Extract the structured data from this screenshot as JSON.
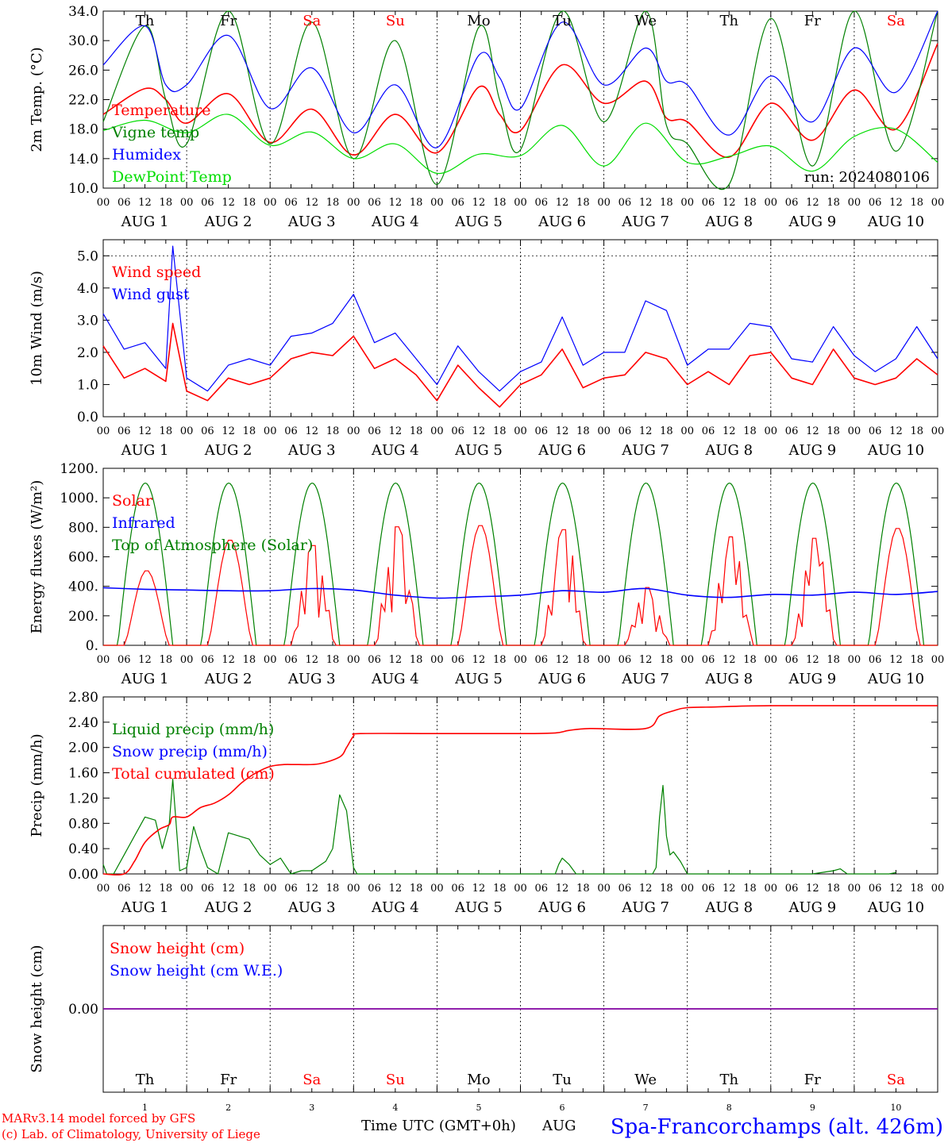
{
  "days": [
    {
      "name": "Th",
      "weekend": false
    },
    {
      "name": "Fr",
      "weekend": false
    },
    {
      "name": "Sa",
      "weekend": true
    },
    {
      "name": "Su",
      "weekend": true
    },
    {
      "name": "Mo",
      "weekend": false
    },
    {
      "name": "Tu",
      "weekend": false
    },
    {
      "name": "We",
      "weekend": false
    },
    {
      "name": "Th",
      "weekend": false
    },
    {
      "name": "Fr",
      "weekend": false
    },
    {
      "name": "Sa",
      "weekend": true
    }
  ],
  "date_labels": [
    "AUG  1",
    "AUG  2",
    "AUG  3",
    "AUG  4",
    "AUG  5",
    "AUG  6",
    "AUG  7",
    "AUG  8",
    "AUG  9",
    "AUG 10"
  ],
  "hour_ticks": [
    "00",
    "06",
    "12",
    "18"
  ],
  "hour_end": "00",
  "day_numbers": [
    "1",
    "2",
    "3",
    "4",
    "5",
    "6",
    "7",
    "8",
    "9",
    "10"
  ],
  "colors": {
    "red": "#ff0000",
    "green": "#008000",
    "blue": "#0000ff",
    "lightgreen": "#00dd00",
    "purple": "#8000a0",
    "weekend": "#ff0000"
  },
  "footer": {
    "model": "MARv3.14 model forced by GFS",
    "copyright": "(c) Lab. of Climatology, University of Liege",
    "xlabel": "Time UTC (GMT+0h)",
    "month": "AUG",
    "location": "Spa-Francorchamps (alt. 426m)"
  },
  "chart_data": [
    {
      "id": "temp",
      "type": "line",
      "ylabel": "2m Temp. (°C)",
      "ylim": [
        10,
        34
      ],
      "yticks": [
        "10.0",
        "14.0",
        "18.0",
        "22.0",
        "26.0",
        "30.0",
        "34.0"
      ],
      "ytick_values": [
        10,
        14,
        18,
        22,
        26,
        30,
        34
      ],
      "annotation": "run: 2024080106",
      "show_days": true,
      "series": [
        {
          "name": "Temperature",
          "color": "red",
          "x": [
            0,
            12,
            18,
            24,
            36,
            48,
            60,
            72,
            84,
            96,
            108,
            114,
            120,
            132,
            144,
            156,
            162,
            168,
            180,
            192,
            204,
            216,
            228,
            240
          ],
          "y": [
            20,
            23.5,
            22,
            18.8,
            22.8,
            16.2,
            20.7,
            14.5,
            20,
            14.8,
            23.7,
            20,
            17.8,
            26.7,
            21.5,
            24.5,
            19.5,
            19,
            14.2,
            21.5,
            16.5,
            23.3,
            18,
            29.6
          ]
        },
        {
          "name": "Vigne temp",
          "color": "green",
          "x": [
            0,
            12,
            18,
            24,
            36,
            48,
            60,
            72,
            84,
            96,
            108,
            114,
            120,
            132,
            144,
            156,
            162,
            168,
            180,
            192,
            204,
            216,
            228,
            240
          ],
          "y": [
            19,
            32,
            22,
            16,
            34,
            16,
            32.5,
            14,
            30,
            10.5,
            31.8,
            22,
            15.2,
            34,
            19,
            34,
            18.5,
            16,
            10.5,
            33,
            13,
            34,
            15,
            34
          ]
        },
        {
          "name": "Humidex",
          "color": "blue",
          "x": [
            0,
            12,
            18,
            24,
            36,
            48,
            60,
            72,
            84,
            96,
            108,
            114,
            120,
            132,
            144,
            156,
            162,
            168,
            180,
            192,
            204,
            216,
            228,
            240
          ],
          "y": [
            26.7,
            32,
            24,
            24,
            30.7,
            20.8,
            26.3,
            17.5,
            24,
            15.5,
            28,
            25,
            20.8,
            32.5,
            24,
            29,
            24.5,
            24,
            17.2,
            25.2,
            19,
            29,
            23,
            34
          ]
        },
        {
          "name": "DewPoint Temp",
          "color": "lightgreen",
          "x": [
            0,
            12,
            24,
            36,
            48,
            60,
            72,
            84,
            96,
            108,
            120,
            132,
            144,
            156,
            168,
            180,
            192,
            204,
            216,
            228,
            240
          ],
          "y": [
            17.8,
            19.2,
            17.5,
            20,
            15.8,
            17.6,
            14,
            16,
            12,
            14.6,
            14.4,
            18.5,
            13,
            18.8,
            13.5,
            14.3,
            15.7,
            12.3,
            17,
            18,
            13.5
          ]
        }
      ]
    },
    {
      "id": "wind",
      "type": "line",
      "ylabel": "10m Wind (m/s)",
      "ylim": [
        0,
        5.5
      ],
      "yticks": [
        "0.0",
        "1.0",
        "2.0",
        "3.0",
        "4.0",
        "5.0"
      ],
      "ytick_values": [
        0,
        1,
        2,
        3,
        4,
        5
      ],
      "dashed_y": 5,
      "series": [
        {
          "name": "Wind speed",
          "color": "red",
          "x": [
            0,
            6,
            12,
            18,
            20,
            24,
            30,
            36,
            42,
            48,
            54,
            60,
            66,
            72,
            78,
            84,
            90,
            96,
            102,
            108,
            114,
            120,
            126,
            132,
            138,
            144,
            150,
            156,
            162,
            168,
            174,
            180,
            186,
            192,
            198,
            204,
            210,
            216,
            222,
            228,
            234,
            240
          ],
          "y": [
            2.2,
            1.2,
            1.5,
            1.1,
            2.9,
            0.8,
            0.5,
            1.2,
            1.0,
            1.2,
            1.8,
            2,
            1.9,
            2.5,
            1.5,
            1.8,
            1.3,
            0.5,
            1.6,
            0.9,
            0.3,
            1.0,
            1.3,
            2.1,
            0.9,
            1.2,
            1.3,
            2.0,
            1.8,
            1.0,
            1.4,
            1.0,
            1.9,
            2.0,
            1.2,
            1.0,
            2.1,
            1.2,
            1.0,
            1.2,
            1.8,
            1.3
          ]
        },
        {
          "name": "Wind gust",
          "color": "blue",
          "x": [
            0,
            6,
            12,
            18,
            20,
            24,
            30,
            36,
            42,
            48,
            54,
            60,
            66,
            72,
            78,
            84,
            90,
            96,
            102,
            108,
            114,
            120,
            126,
            132,
            138,
            144,
            150,
            156,
            162,
            168,
            174,
            180,
            186,
            192,
            198,
            204,
            210,
            216,
            222,
            228,
            234,
            240
          ],
          "y": [
            3.2,
            2.1,
            2.3,
            1.5,
            5.3,
            1.2,
            0.8,
            1.6,
            1.8,
            1.6,
            2.5,
            2.6,
            2.9,
            3.8,
            2.3,
            2.6,
            1.8,
            1.0,
            2.2,
            1.4,
            0.8,
            1.4,
            1.7,
            3.1,
            1.6,
            2.0,
            2.0,
            3.6,
            3.3,
            1.6,
            2.1,
            2.1,
            2.9,
            2.8,
            1.8,
            1.7,
            2.8,
            1.9,
            1.4,
            1.8,
            2.8,
            1.8
          ]
        }
      ]
    },
    {
      "id": "energy",
      "type": "line",
      "ylabel": "Energy fluxes (W/m²)",
      "ylim": [
        0,
        1200
      ],
      "yticks": [
        "0.",
        "200.",
        "400.",
        "600.",
        "800.",
        "1000.",
        "1200."
      ],
      "ytick_values": [
        0,
        200,
        400,
        600,
        800,
        1000,
        1200
      ],
      "series": [
        {
          "name": "Solar",
          "color": "red",
          "daily_peaks": [
            510,
            720,
            690,
            820,
            820,
            800,
            400,
            750,
            740,
            800
          ],
          "daily_jagged": [
            false,
            false,
            true,
            true,
            false,
            true,
            true,
            true,
            true,
            false
          ]
        },
        {
          "name": "Infrared",
          "color": "blue",
          "x": [
            0,
            12,
            24,
            36,
            48,
            60,
            72,
            84,
            96,
            108,
            120,
            132,
            144,
            156,
            168,
            180,
            192,
            204,
            216,
            228,
            240
          ],
          "y": [
            390,
            380,
            375,
            370,
            370,
            385,
            375,
            340,
            320,
            330,
            340,
            370,
            360,
            385,
            340,
            325,
            345,
            340,
            360,
            345,
            365
          ]
        },
        {
          "name": "Top of Atmosphere (Solar)",
          "color": "green",
          "peak": 1100,
          "sunrise": 4.2,
          "sunset": 20.0
        }
      ]
    },
    {
      "id": "precip",
      "type": "line",
      "ylabel": "Precip (mm/h)",
      "ylim": [
        0,
        2.8
      ],
      "yticks": [
        "0.00",
        "0.40",
        "0.80",
        "1.20",
        "1.60",
        "2.00",
        "2.40",
        "2.80"
      ],
      "ytick_values": [
        0,
        0.4,
        0.8,
        1.2,
        1.6,
        2.0,
        2.4,
        2.8
      ],
      "series": [
        {
          "name": "Liquid precip (mm/h)",
          "color": "green",
          "x": [
            0,
            1,
            3,
            6,
            9,
            12,
            15,
            17,
            19,
            20,
            22,
            24,
            26,
            28,
            30,
            33,
            36,
            39,
            42,
            45,
            48,
            51,
            54,
            57,
            60,
            64,
            66,
            68,
            70,
            72,
            73,
            74,
            130,
            131,
            132,
            134,
            136,
            140,
            158,
            159,
            160,
            161,
            162,
            163,
            164,
            166,
            168,
            170,
            204,
            210,
            212,
            214,
            226,
            228
          ],
          "y": [
            0.15,
            0,
            0,
            0.3,
            0.6,
            0.9,
            0.85,
            0.4,
            0.8,
            1.5,
            0.05,
            0.1,
            0.75,
            0.4,
            0.1,
            0,
            0.65,
            0.6,
            0.55,
            0.3,
            0.15,
            0.25,
            0.0,
            0.05,
            0.05,
            0.2,
            0.4,
            1.25,
            1.0,
            0.1,
            0,
            0,
            0,
            0.15,
            0.25,
            0.15,
            0,
            0,
            0,
            0.1,
            0.9,
            1.4,
            0.6,
            0.3,
            0.35,
            0.2,
            0.0,
            0,
            0,
            0.05,
            0.08,
            0,
            0,
            0.02
          ]
        },
        {
          "name": "Snow precip (mm/h)",
          "color": "blue",
          "x": [],
          "y": []
        },
        {
          "name": "Total cumulated (cm)",
          "color": "red",
          "x": [
            0,
            6,
            9,
            12,
            16,
            19,
            20,
            24,
            28,
            32,
            36,
            40,
            44,
            48,
            52,
            56,
            62,
            68,
            70,
            72,
            74,
            96,
            120,
            130,
            134,
            140,
            156,
            160,
            164,
            168,
            176,
            192,
            240
          ],
          "y": [
            0,
            0,
            0.2,
            0.5,
            0.7,
            0.78,
            0.9,
            0.9,
            1.05,
            1.12,
            1.25,
            1.45,
            1.6,
            1.7,
            1.73,
            1.73,
            1.74,
            1.85,
            2.0,
            2.18,
            2.22,
            2.22,
            2.22,
            2.23,
            2.27,
            2.3,
            2.3,
            2.5,
            2.58,
            2.63,
            2.64,
            2.66,
            2.66
          ]
        }
      ]
    },
    {
      "id": "snow",
      "type": "line",
      "ylabel": "Snow height (cm)",
      "ylim": [
        -1,
        1
      ],
      "yticks": [
        "0.00"
      ],
      "ytick_values": [
        0
      ],
      "series": [
        {
          "name": "Snow height (cm)",
          "color": "red",
          "x": [
            0,
            240
          ],
          "y": [
            0,
            0
          ]
        },
        {
          "name": "Snow height (cm W.E.)",
          "color": "blue",
          "x": [
            0,
            240
          ],
          "y": [
            0,
            0
          ]
        }
      ]
    }
  ]
}
